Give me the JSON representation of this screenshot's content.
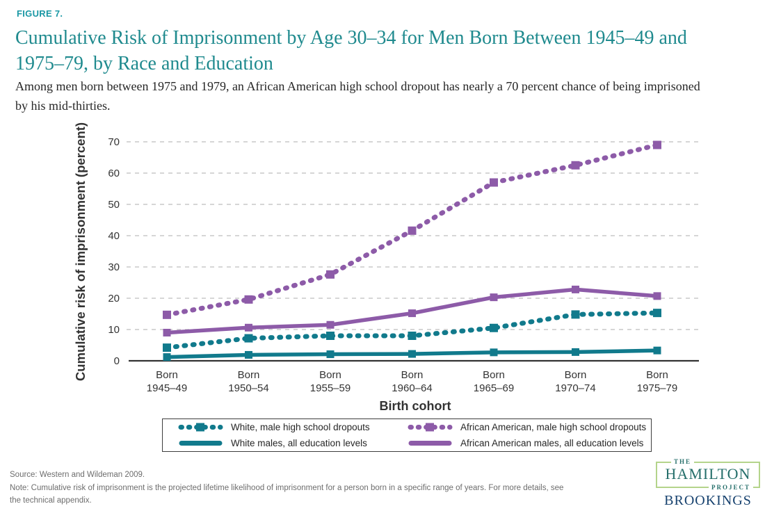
{
  "header": {
    "figure_label": "FIGURE 7.",
    "title_lines": [
      "Cumulative Risk of Imprisonment by Age 30–34 for Men Born Between 1945–49 and",
      "1975–79, by Race and Education"
    ],
    "subtitle_lines": [
      "Among men born between 1975 and 1979, an African American high school dropout has nearly a 70 percent chance of being imprisoned",
      "by his mid-thirties."
    ]
  },
  "chart_data": {
    "type": "line",
    "xlabel": "Birth cohort",
    "ylabel": "Cumulative risk of imprisonment (percent)",
    "ylim": [
      0,
      70
    ],
    "yticks": [
      0,
      10,
      20,
      30,
      40,
      50,
      60,
      70
    ],
    "grid": "horizontal dashed gridlines at every 10",
    "category_prefix": "Born",
    "categories": [
      "1945–49",
      "1950–54",
      "1955–59",
      "1960–64",
      "1965–69",
      "1970–74",
      "1975–79"
    ],
    "series": [
      {
        "name": "White, male high school dropouts",
        "color": "#117a8c",
        "style": "dashed",
        "values": [
          4.2,
          7.2,
          8.0,
          8.0,
          10.5,
          14.8,
          15.3
        ]
      },
      {
        "name": "White males, all education levels",
        "color": "#117a8c",
        "style": "solid",
        "values": [
          1.2,
          1.9,
          2.1,
          2.2,
          2.7,
          2.8,
          3.3
        ]
      },
      {
        "name": "African American, male high school dropouts",
        "color": "#8d5ba8",
        "style": "dashed",
        "values": [
          14.7,
          19.6,
          27.6,
          41.6,
          57.0,
          62.5,
          69.0
        ]
      },
      {
        "name": "African American males, all education levels",
        "color": "#8d5ba8",
        "style": "solid",
        "values": [
          9.0,
          10.6,
          11.5,
          15.2,
          20.3,
          22.8,
          20.7
        ]
      }
    ],
    "legend_position": "bottom-box",
    "marker": "square"
  },
  "footer": {
    "source": "Source: Western and Wildeman 2009.",
    "note_lines": [
      "Note: Cumulative risk of imprisonment is the projected lifetime likelihood of imprisonment for a person born in a specific range of years. For more details, see",
      "the technical appendix."
    ]
  },
  "logo": {
    "the": "THE",
    "hamilton": "HAMILTON",
    "project": "PROJECT",
    "brookings": "BROOKINGS"
  },
  "colors": {
    "figure_label_teal": "#1b98a5",
    "title_teal": "#1f8a8e",
    "body_text": "#262626",
    "series_teal": "#117a8c",
    "series_purple": "#8d5ba8",
    "gridline_gray": "#c9c9c9",
    "axis_text": "#333333",
    "footer_gray": "#6d6d6d",
    "legend_border": "#3d3d3d",
    "logo_border_green": "#b4d48b",
    "hamilton_teal": "#266f6b",
    "brookings_navy": "#16416e"
  }
}
